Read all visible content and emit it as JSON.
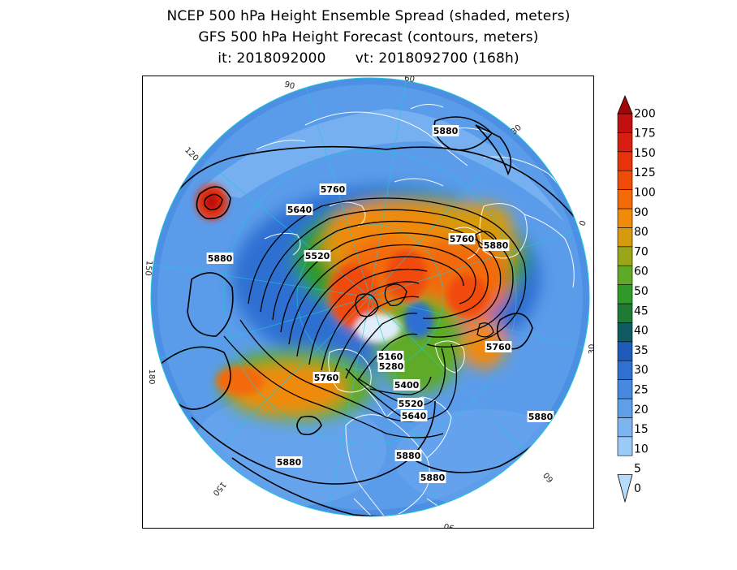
{
  "title": {
    "line1": "NCEP 500 hPa Height Ensemble Spread (shaded, meters)",
    "line2": "GFS 500 hPa Height Forecast (contours, meters)",
    "init": "it: 2018092000",
    "valid": "vt: 2018092700 (168h)"
  },
  "colorbar": {
    "levels": [
      "0",
      "5",
      "10",
      "15",
      "20",
      "25",
      "30",
      "35",
      "40",
      "45",
      "50",
      "60",
      "70",
      "80",
      "90",
      "100",
      "125",
      "150",
      "175",
      "200"
    ],
    "colors": [
      "#b7dcfb",
      "#9ccaf6",
      "#7db5f1",
      "#5f9fe9",
      "#4689df",
      "#2f70d2",
      "#1f5bb8",
      "#0f5a63",
      "#1f7a33",
      "#2f9a2a",
      "#5eaa26",
      "#9aa618",
      "#d59a0d",
      "#f08a0a",
      "#f36a09",
      "#f04c08",
      "#e8320a",
      "#d81e10",
      "#c01010",
      "#a00808"
    ]
  },
  "contour_labels": [
    "5880",
    "5760",
    "5640",
    "5520",
    "5880",
    "5760",
    "5880",
    "5760",
    "5160",
    "5280",
    "5400",
    "5520",
    "5640",
    "5760",
    "5880",
    "5880",
    "5880",
    "5880"
  ],
  "longitude_labels": [
    "60",
    "30",
    "0",
    "30",
    "60",
    "90",
    "120",
    "150",
    "180",
    "150",
    "120",
    "90"
  ],
  "icons": {
    "map": "polar-stereographic-map",
    "colorbar": "colorbar-icon"
  }
}
